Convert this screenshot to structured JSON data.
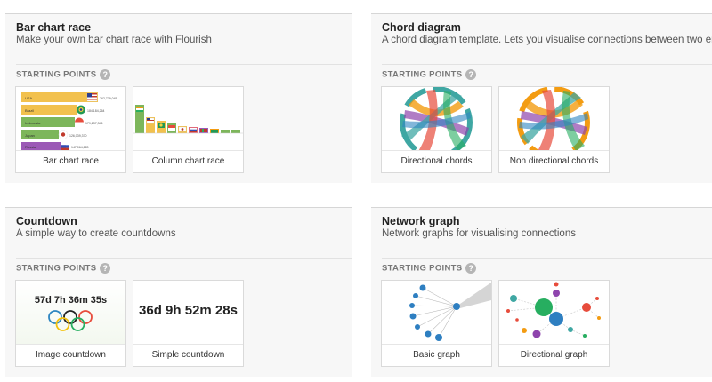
{
  "common": {
    "starting_points_label": "STARTING POINTS",
    "help_glyph": "?"
  },
  "sections": [
    {
      "title": "Bar chart race",
      "description": "Make your own bar chart race with Flourish",
      "cards": [
        {
          "label": "Bar chart race"
        },
        {
          "label": "Column chart race"
        }
      ]
    },
    {
      "title": "Chord diagram",
      "description": "A chord diagram template. Lets you visualise connections between two entities.",
      "cards": [
        {
          "label": "Directional chords"
        },
        {
          "label": "Non directional chords"
        }
      ]
    },
    {
      "title": "Countdown",
      "description": "A simple way to create countdowns",
      "cards": [
        {
          "label": "Image countdown"
        },
        {
          "label": "Simple countdown"
        }
      ]
    },
    {
      "title": "Network graph",
      "description": "Network graphs for visualising connections",
      "cards": [
        {
          "label": "Basic graph"
        },
        {
          "label": "Directional graph"
        }
      ]
    }
  ],
  "thumbnails": {
    "bar_race": {
      "countries": [
        "USA",
        "Brazil",
        "Indonesia",
        "Japan",
        "Russia"
      ],
      "values": [
        "262,779,045",
        "184,184,264",
        "179,237,346",
        "126,039,370",
        "147,064,228"
      ]
    },
    "image_countdown": {
      "time": "57d 7h 36m 35s"
    },
    "simple_countdown": {
      "time": "36d 9h 52m 28s"
    }
  },
  "colors": {
    "bar_gold": "#f2c14e",
    "bar_green": "#7db65b",
    "bar_pink": "#e06a7a",
    "bar_purple": "#9b59b6",
    "chord_teal": "#3fa7a3",
    "chord_orange": "#f39c12",
    "chord_purple": "#8e44ad",
    "chord_red": "#e74c3c",
    "network_blue": "#2e7fc1"
  }
}
